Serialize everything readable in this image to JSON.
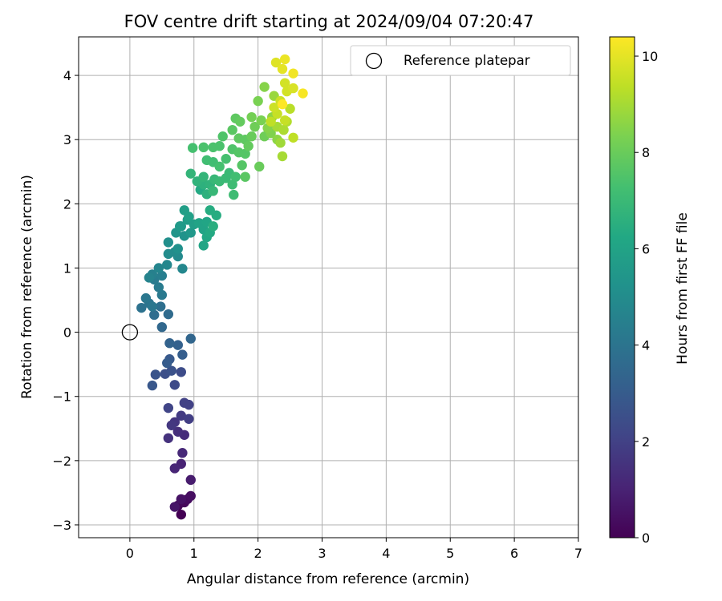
{
  "chart_data": {
    "type": "scatter",
    "title": "FOV centre drift starting at 2024/09/04 07:20:47",
    "xlabel": "Angular distance from reference (arcmin)",
    "ylabel": "Rotation from reference (arcmin)",
    "xlim": [
      -0.8,
      7.0
    ],
    "ylim": [
      -3.2,
      4.6
    ],
    "xticks": [
      0,
      1,
      2,
      3,
      4,
      5,
      6,
      7
    ],
    "yticks": [
      -3,
      -2,
      -1,
      0,
      1,
      2,
      3,
      4
    ],
    "grid": true,
    "legend": {
      "placement": "top-right",
      "entries": [
        "Reference platepar"
      ]
    },
    "reference_point": {
      "x": 0,
      "y": 0,
      "label": "Reference platepar"
    },
    "colorbar": {
      "label": "Hours from first FF file",
      "range": [
        0,
        10.4
      ],
      "ticks": [
        0,
        2,
        4,
        6,
        8,
        10
      ],
      "colormap": "viridis"
    },
    "series": [
      {
        "points": [
          [
            0.8,
            -2.84,
            0.0
          ],
          [
            0.75,
            -2.7,
            0.1
          ],
          [
            0.85,
            -2.65,
            0.2
          ],
          [
            0.9,
            -2.6,
            0.3
          ],
          [
            0.95,
            -2.55,
            0.4
          ],
          [
            0.8,
            -2.6,
            0.5
          ],
          [
            0.7,
            -2.72,
            0.6
          ],
          [
            0.95,
            -2.3,
            0.8
          ],
          [
            0.8,
            -2.05,
            1.0
          ],
          [
            0.7,
            -2.12,
            1.1
          ],
          [
            0.82,
            -1.88,
            1.2
          ],
          [
            0.85,
            -1.6,
            1.3
          ],
          [
            0.75,
            -1.55,
            1.4
          ],
          [
            0.6,
            -1.65,
            1.5
          ],
          [
            0.7,
            -1.4,
            1.6
          ],
          [
            0.65,
            -1.45,
            1.7
          ],
          [
            0.8,
            -1.3,
            1.8
          ],
          [
            0.92,
            -1.35,
            1.9
          ],
          [
            0.85,
            -1.1,
            2.0
          ],
          [
            0.92,
            -1.13,
            2.0
          ],
          [
            0.6,
            -1.18,
            2.1
          ],
          [
            0.7,
            -0.82,
            2.3
          ],
          [
            0.8,
            -0.62,
            2.4
          ],
          [
            0.55,
            -0.65,
            2.5
          ],
          [
            0.65,
            -0.6,
            2.6
          ],
          [
            0.4,
            -0.66,
            2.7
          ],
          [
            0.35,
            -0.83,
            2.8
          ],
          [
            0.62,
            -0.42,
            2.9
          ],
          [
            0.58,
            -0.48,
            3.0
          ],
          [
            0.82,
            -0.35,
            3.1
          ],
          [
            0.75,
            -0.2,
            3.2
          ],
          [
            0.62,
            -0.17,
            3.3
          ],
          [
            0.95,
            -0.1,
            3.4
          ],
          [
            0.5,
            0.08,
            3.5
          ],
          [
            0.6,
            0.28,
            3.6
          ],
          [
            0.38,
            0.27,
            3.7
          ],
          [
            0.48,
            0.4,
            3.8
          ],
          [
            0.18,
            0.38,
            3.9
          ],
          [
            0.3,
            0.45,
            4.0
          ],
          [
            0.25,
            0.53,
            4.1
          ],
          [
            0.35,
            0.4,
            4.1
          ],
          [
            0.5,
            0.58,
            4.2
          ],
          [
            0.45,
            0.7,
            4.3
          ],
          [
            0.38,
            0.82,
            4.3
          ],
          [
            0.5,
            0.88,
            4.4
          ],
          [
            0.35,
            0.9,
            4.5
          ],
          [
            0.3,
            0.85,
            4.6
          ],
          [
            0.45,
            1.0,
            4.7
          ],
          [
            0.58,
            1.05,
            4.8
          ],
          [
            0.82,
            0.99,
            4.8
          ],
          [
            0.75,
            1.18,
            4.9
          ],
          [
            0.6,
            1.22,
            5.0
          ],
          [
            0.7,
            1.25,
            5.0
          ],
          [
            0.6,
            1.4,
            5.1
          ],
          [
            0.75,
            1.3,
            5.2
          ],
          [
            0.85,
            1.5,
            5.3
          ],
          [
            0.72,
            1.55,
            5.4
          ],
          [
            0.8,
            1.65,
            5.5
          ],
          [
            0.95,
            1.55,
            5.5
          ],
          [
            0.78,
            1.65,
            5.6
          ],
          [
            0.9,
            1.75,
            5.7
          ],
          [
            0.85,
            1.9,
            5.8
          ],
          [
            1.0,
            1.68,
            5.8
          ],
          [
            0.92,
            1.8,
            5.9
          ],
          [
            1.08,
            1.7,
            6.0
          ],
          [
            1.15,
            1.6,
            6.0
          ],
          [
            1.2,
            1.72,
            6.1
          ],
          [
            1.15,
            1.35,
            6.1
          ],
          [
            1.2,
            1.48,
            6.2
          ],
          [
            1.25,
            1.55,
            6.3
          ],
          [
            1.1,
            2.22,
            6.3
          ],
          [
            1.35,
            1.82,
            6.4
          ],
          [
            1.25,
            1.9,
            6.4
          ],
          [
            1.3,
            1.65,
            6.5
          ],
          [
            1.2,
            2.15,
            6.6
          ],
          [
            1.15,
            2.3,
            6.6
          ],
          [
            1.25,
            2.3,
            6.7
          ],
          [
            1.05,
            2.35,
            6.7
          ],
          [
            0.95,
            2.47,
            6.8
          ],
          [
            1.15,
            2.42,
            6.8
          ],
          [
            1.3,
            2.2,
            6.9
          ],
          [
            1.32,
            2.38,
            6.9
          ],
          [
            1.4,
            2.35,
            7.0
          ],
          [
            1.5,
            2.4,
            7.0
          ],
          [
            1.55,
            2.48,
            7.0
          ],
          [
            1.62,
            2.14,
            7.1
          ],
          [
            1.6,
            2.3,
            7.1
          ],
          [
            1.65,
            2.42,
            7.2
          ],
          [
            1.2,
            2.68,
            7.2
          ],
          [
            1.3,
            2.65,
            7.2
          ],
          [
            1.4,
            2.58,
            7.3
          ],
          [
            1.5,
            2.7,
            7.3
          ],
          [
            0.98,
            2.87,
            7.3
          ],
          [
            1.15,
            2.88,
            7.4
          ],
          [
            1.3,
            2.88,
            7.4
          ],
          [
            1.4,
            2.9,
            7.4
          ],
          [
            1.45,
            3.05,
            7.5
          ],
          [
            1.6,
            2.85,
            7.5
          ],
          [
            1.7,
            2.8,
            7.6
          ],
          [
            1.8,
            2.78,
            7.6
          ],
          [
            1.75,
            2.6,
            7.6
          ],
          [
            1.8,
            2.42,
            7.7
          ],
          [
            1.6,
            3.15,
            7.7
          ],
          [
            1.7,
            3.02,
            7.8
          ],
          [
            1.8,
            3.0,
            7.8
          ],
          [
            1.65,
            3.33,
            7.8
          ],
          [
            1.72,
            3.28,
            7.9
          ],
          [
            1.85,
            2.9,
            7.9
          ],
          [
            1.9,
            3.05,
            8.0
          ],
          [
            2.02,
            2.58,
            8.0
          ],
          [
            1.95,
            3.2,
            8.1
          ],
          [
            2.1,
            3.05,
            8.1
          ],
          [
            1.9,
            3.35,
            8.2
          ],
          [
            2.05,
            3.3,
            8.3
          ],
          [
            2.0,
            3.6,
            8.3
          ],
          [
            2.2,
            3.1,
            8.4
          ],
          [
            2.15,
            3.18,
            8.5
          ],
          [
            2.1,
            3.82,
            8.5
          ],
          [
            2.3,
            3.0,
            8.6
          ],
          [
            2.22,
            3.35,
            8.7
          ],
          [
            2.25,
            3.68,
            8.8
          ],
          [
            2.35,
            2.95,
            8.9
          ],
          [
            2.38,
            2.74,
            9.0
          ],
          [
            2.3,
            3.2,
            9.0
          ],
          [
            2.4,
            3.15,
            9.1
          ],
          [
            2.45,
            3.28,
            9.2
          ],
          [
            2.5,
            3.48,
            9.3
          ],
          [
            2.55,
            3.03,
            9.4
          ],
          [
            2.2,
            3.28,
            9.4
          ],
          [
            2.3,
            3.4,
            9.5
          ],
          [
            2.42,
            3.3,
            9.5
          ],
          [
            2.25,
            3.5,
            9.6
          ],
          [
            2.35,
            3.6,
            9.6
          ],
          [
            2.45,
            3.75,
            9.7
          ],
          [
            2.42,
            3.88,
            9.7
          ],
          [
            2.55,
            3.8,
            9.8
          ],
          [
            2.28,
            4.2,
            9.9
          ],
          [
            2.38,
            4.1,
            10.0
          ],
          [
            2.42,
            4.25,
            10.1
          ],
          [
            2.55,
            4.03,
            10.2
          ],
          [
            2.7,
            3.72,
            10.3
          ],
          [
            2.38,
            3.55,
            10.4
          ]
        ]
      }
    ]
  }
}
